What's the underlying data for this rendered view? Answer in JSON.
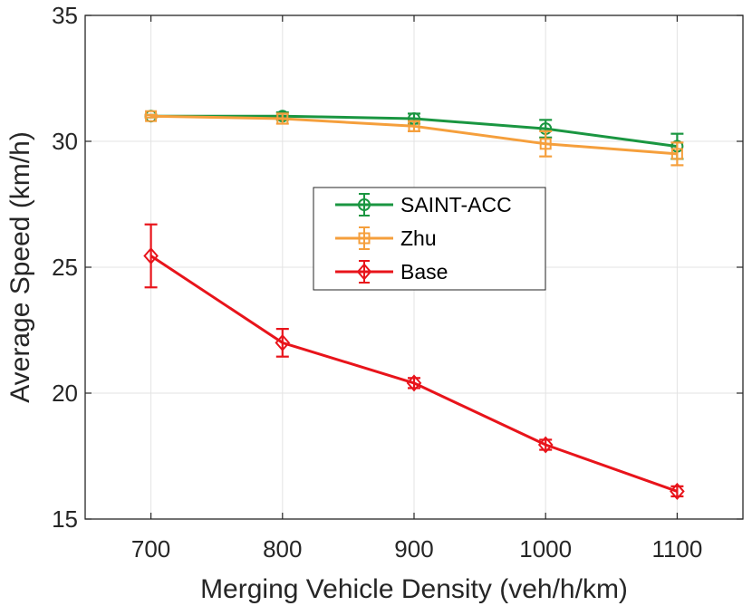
{
  "chart_data": {
    "type": "line",
    "title": "",
    "xlabel": "Merging Vehicle Density (veh/h/km)",
    "ylabel": "Average Speed (km/h)",
    "xlim": [
      650,
      1150
    ],
    "ylim": [
      15,
      35
    ],
    "xticks": [
      700,
      800,
      900,
      1000,
      1100
    ],
    "yticks": [
      15,
      20,
      25,
      30,
      35
    ],
    "grid": true,
    "legend_position": "center",
    "x": [
      700,
      800,
      900,
      1000,
      1100
    ],
    "series": [
      {
        "name": "SAINT-ACC",
        "color": "#1a9641",
        "marker": "circle",
        "values": [
          31.0,
          31.0,
          30.9,
          30.5,
          29.8
        ],
        "errors": [
          0.05,
          0.15,
          0.2,
          0.35,
          0.5
        ]
      },
      {
        "name": "Zhu",
        "color": "#f59f3c",
        "marker": "square",
        "values": [
          31.0,
          30.9,
          30.6,
          29.9,
          29.5
        ],
        "errors": [
          0.05,
          0.2,
          0.2,
          0.5,
          0.45
        ]
      },
      {
        "name": "Base",
        "color": "#e8141b",
        "marker": "diamond",
        "values": [
          25.45,
          22.0,
          20.4,
          17.95,
          16.1
        ],
        "errors": [
          1.25,
          0.55,
          0.2,
          0.2,
          0.2
        ]
      }
    ]
  }
}
